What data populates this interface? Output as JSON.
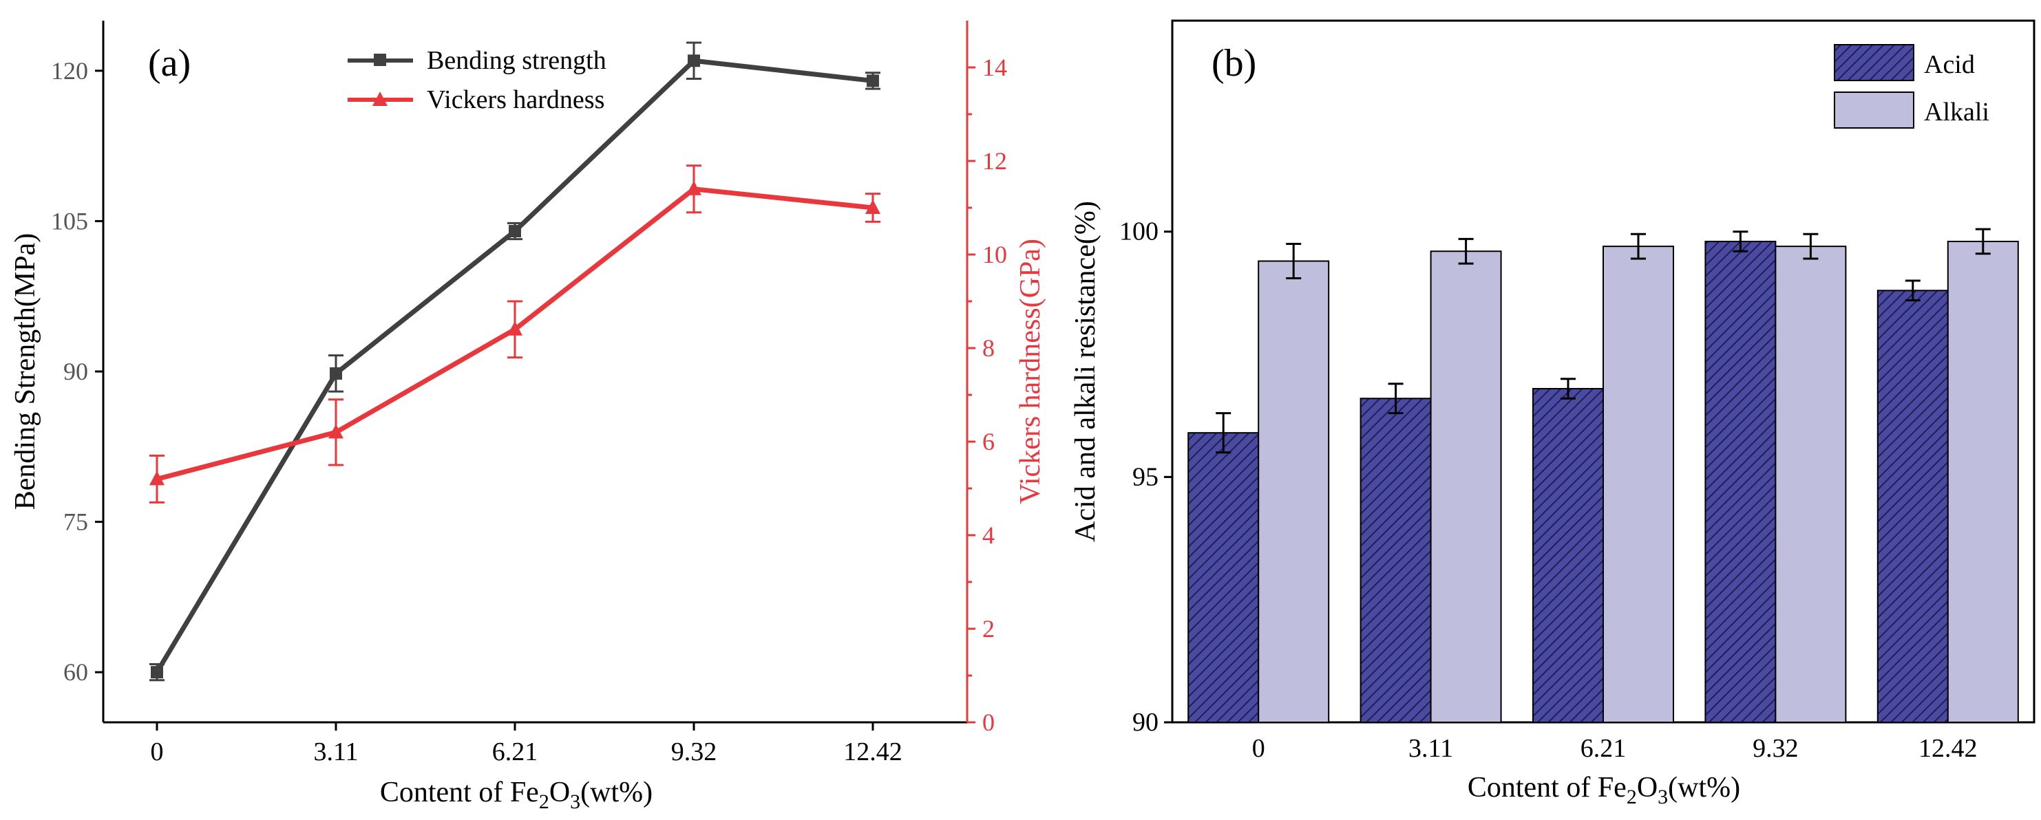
{
  "chart_data": [
    {
      "panel_label": "(a)",
      "type": "line",
      "categories": [
        "0",
        "3.11",
        "6.21",
        "9.32",
        "12.42"
      ],
      "xlabel_prefix": "Content of Fe",
      "xlabel_sub1": "2",
      "xlabel_mid": "O",
      "xlabel_sub2": "3",
      "xlabel_suffix": "(wt%)",
      "ylabel_left": "Bending Strength(MPa)",
      "ylabel_right": "Vickers hardness(GPa)",
      "ylim_left": [
        55,
        125
      ],
      "ylim_right": [
        0,
        15
      ],
      "yticks_left": [
        "60",
        "75",
        "90",
        "105",
        "120"
      ],
      "yticks_right": [
        "0",
        "2",
        "4",
        "6",
        "8",
        "10",
        "12",
        "14"
      ],
      "series": [
        {
          "name": "Bending strength",
          "axis": "left",
          "color": "#404040",
          "marker": "square",
          "values": [
            60,
            89.8,
            104,
            121,
            119
          ],
          "errors": [
            0.8,
            1.8,
            0.8,
            1.8,
            0.8
          ]
        },
        {
          "name": "Vickers hardness",
          "axis": "right",
          "color": "#e8383d",
          "marker": "triangle",
          "values": [
            5.2,
            6.2,
            8.4,
            11.4,
            11.0
          ],
          "errors": [
            0.5,
            0.7,
            0.6,
            0.5,
            0.3
          ]
        }
      ]
    },
    {
      "panel_label": "(b)",
      "type": "bar",
      "categories": [
        "0",
        "3.11",
        "6.21",
        "9.32",
        "12.42"
      ],
      "xlabel_prefix": "Content of Fe",
      "xlabel_sub1": "2",
      "xlabel_mid": "O",
      "xlabel_sub2": "3",
      "xlabel_suffix": "(wt%)",
      "ylabel": "Acid and alkali resistance(%)",
      "ylim": [
        90,
        104.3
      ],
      "yticks": [
        "90",
        "95",
        "100"
      ],
      "series": [
        {
          "name": "Acid",
          "color": "#4a4aa0",
          "pattern": "hatched",
          "values": [
            95.9,
            96.6,
            96.8,
            99.8,
            98.8
          ],
          "errors": [
            0.4,
            0.3,
            0.2,
            0.2,
            0.2
          ]
        },
        {
          "name": "Alkali",
          "color": "#c0bedd",
          "pattern": "solid",
          "values": [
            99.4,
            99.6,
            99.7,
            99.7,
            99.8
          ],
          "errors": [
            0.35,
            0.25,
            0.25,
            0.25,
            0.25
          ]
        }
      ]
    }
  ]
}
